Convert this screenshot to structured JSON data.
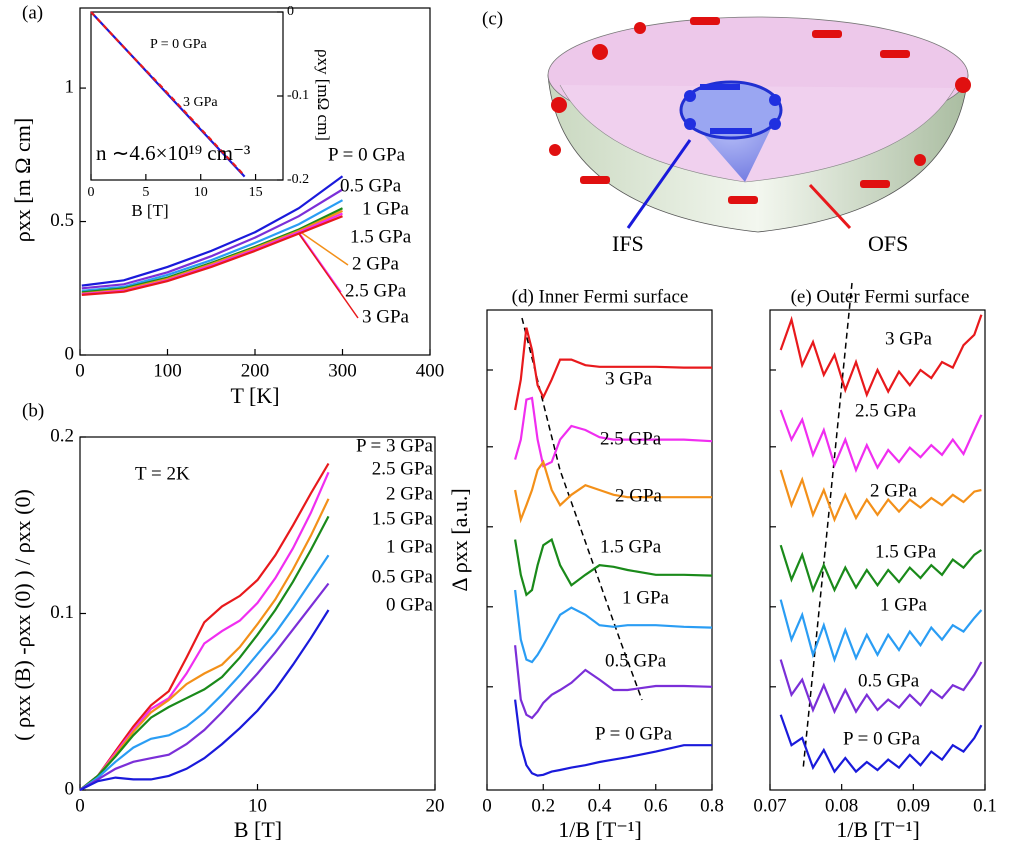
{
  "chart_data": [
    {
      "type": "line",
      "title": "(a)",
      "xlabel": "T [K]",
      "ylabel": "ρxx [m Ω cm]",
      "xlim": [
        0,
        400
      ],
      "ylim": [
        0,
        1.3
      ],
      "xticks": [
        0,
        100,
        200,
        300,
        400
      ],
      "yticks": [
        0,
        0.5,
        1
      ],
      "x": [
        2,
        50,
        100,
        150,
        200,
        250,
        300
      ],
      "series": [
        {
          "name": "P = 0 GPa",
          "color": "#1a1adb",
          "values": [
            0.26,
            0.28,
            0.33,
            0.39,
            0.46,
            0.55,
            0.67
          ]
        },
        {
          "name": "0.5 GPa",
          "color": "#7b2fd8",
          "values": [
            0.25,
            0.265,
            0.31,
            0.37,
            0.44,
            0.52,
            0.62
          ]
        },
        {
          "name": "1 GPa",
          "color": "#2a9df4",
          "values": [
            0.24,
            0.255,
            0.3,
            0.355,
            0.42,
            0.49,
            0.58
          ]
        },
        {
          "name": "1.5 GPa",
          "color": "#1a8a1a",
          "values": [
            0.235,
            0.25,
            0.29,
            0.345,
            0.405,
            0.47,
            0.55
          ]
        },
        {
          "name": "2 GPa",
          "color": "#f39019",
          "values": [
            0.23,
            0.245,
            0.285,
            0.34,
            0.4,
            0.465,
            0.54
          ]
        },
        {
          "name": "2.5 GPa",
          "color": "#f02ef0",
          "values": [
            0.228,
            0.24,
            0.28,
            0.335,
            0.395,
            0.46,
            0.53
          ]
        },
        {
          "name": "3 GPa",
          "color": "#e8191c",
          "values": [
            0.225,
            0.237,
            0.277,
            0.33,
            0.39,
            0.455,
            0.52
          ]
        }
      ]
    },
    {
      "type": "line",
      "xlabel": "B [T]",
      "ylabel": "ρxy [mΩ cm]",
      "yaxis": "right",
      "annotation": "n ∼4.6×10¹⁹ cm⁻³",
      "xlim": [
        0,
        17.5
      ],
      "ylim": [
        -0.2,
        0
      ],
      "xticks": [
        0,
        5,
        10,
        15
      ],
      "yticks": [
        0,
        -0.1,
        -0.2
      ],
      "x": [
        0,
        2,
        4,
        6,
        8,
        10,
        12,
        14
      ],
      "series": [
        {
          "name": "P = 0 GPa",
          "color": "#1a1adb",
          "values": [
            0,
            -0.028,
            -0.056,
            -0.084,
            -0.112,
            -0.14,
            -0.168,
            -0.196
          ]
        },
        {
          "name": "3 GPa",
          "color": "#e8191c",
          "values": [
            0,
            -0.028,
            -0.056,
            -0.083,
            -0.111,
            -0.139,
            -0.167,
            -0.195
          ]
        }
      ]
    },
    {
      "type": "line",
      "title": "(b)",
      "xlabel": "B [T]",
      "ylabel": "( ρxx (B) -ρxx (0) ) / ρxx (0)",
      "annotation": "T = 2K",
      "xlim": [
        0,
        20
      ],
      "ylim": [
        0,
        0.2
      ],
      "xticks": [
        0,
        10,
        20
      ],
      "yticks": [
        0,
        0.1,
        0.2
      ],
      "x": [
        0,
        1,
        2,
        3,
        4,
        5,
        6,
        7,
        8,
        9,
        10,
        11,
        12,
        13,
        14
      ],
      "series": [
        {
          "name": "P = 3 GPa",
          "color": "#e8191c",
          "values": [
            0,
            0.008,
            0.022,
            0.036,
            0.048,
            0.056,
            0.075,
            0.095,
            0.104,
            0.11,
            0.119,
            0.133,
            0.15,
            0.168,
            0.185
          ]
        },
        {
          "name": "2.5 GPa",
          "color": "#f02ef0",
          "values": [
            0,
            0.008,
            0.021,
            0.034,
            0.046,
            0.052,
            0.066,
            0.083,
            0.09,
            0.096,
            0.106,
            0.12,
            0.137,
            0.157,
            0.18
          ]
        },
        {
          "name": "2 GPa",
          "color": "#f39019",
          "values": [
            0,
            0.008,
            0.02,
            0.033,
            0.044,
            0.051,
            0.06,
            0.066,
            0.071,
            0.081,
            0.094,
            0.108,
            0.125,
            0.144,
            0.165
          ]
        },
        {
          "name": "1.5 GPa",
          "color": "#1a8a1a",
          "values": [
            0,
            0.008,
            0.019,
            0.031,
            0.041,
            0.047,
            0.052,
            0.057,
            0.064,
            0.075,
            0.088,
            0.102,
            0.118,
            0.136,
            0.155
          ]
        },
        {
          "name": "1 GPa",
          "color": "#2a9df4",
          "values": [
            0,
            0.007,
            0.016,
            0.024,
            0.029,
            0.031,
            0.036,
            0.044,
            0.054,
            0.065,
            0.077,
            0.089,
            0.103,
            0.118,
            0.133
          ]
        },
        {
          "name": "0.5 GPa",
          "color": "#7b2fd8",
          "values": [
            0,
            0.006,
            0.012,
            0.016,
            0.018,
            0.02,
            0.026,
            0.034,
            0.044,
            0.055,
            0.066,
            0.078,
            0.091,
            0.104,
            0.117
          ]
        },
        {
          "name": "0 GPa",
          "color": "#1a1adb",
          "values": [
            0,
            0.005,
            0.007,
            0.006,
            0.006,
            0.008,
            0.012,
            0.018,
            0.026,
            0.035,
            0.045,
            0.057,
            0.071,
            0.086,
            0.102
          ]
        }
      ]
    },
    {
      "type": "line",
      "title": "(d) Inner Fermi surface",
      "xlabel": "1/B [T⁻¹]",
      "ylabel": "Δ ρxx [a.u.]",
      "yticklabels": false,
      "xlim": [
        0,
        0.8
      ],
      "ylim": [
        0,
        6
      ],
      "xticks": [
        0,
        0.2,
        0.4,
        0.6,
        0.8
      ],
      "yticks": [
        1.29,
        2.29,
        3.29,
        4.29,
        5.25
      ],
      "x": [
        0.1,
        0.12,
        0.14,
        0.16,
        0.18,
        0.2,
        0.23,
        0.26,
        0.3,
        0.35,
        0.4,
        0.45,
        0.5,
        0.6,
        0.7,
        0.8
      ],
      "series": [
        {
          "name": "3 GPa",
          "color": "#e8191c",
          "values": [
            4.75,
            5.13,
            5.78,
            5.5,
            5.06,
            4.91,
            5.13,
            5.38,
            5.38,
            5.31,
            5.29,
            5.29,
            5.29,
            5.29,
            5.28,
            5.28
          ]
        },
        {
          "name": "2.5 GPa",
          "color": "#f02ef0",
          "values": [
            4.13,
            4.38,
            4.88,
            4.9,
            4.38,
            4.05,
            4.1,
            4.38,
            4.55,
            4.5,
            4.41,
            4.38,
            4.38,
            4.38,
            4.38,
            4.36
          ]
        },
        {
          "name": "2 GPa",
          "color": "#f39019",
          "values": [
            3.75,
            3.38,
            3.56,
            3.75,
            4.0,
            4.1,
            3.75,
            3.56,
            3.69,
            3.81,
            3.75,
            3.69,
            3.66,
            3.66,
            3.66,
            3.66
          ]
        },
        {
          "name": "1.5 GPa",
          "color": "#1a8a1a",
          "values": [
            3.13,
            2.69,
            2.44,
            2.5,
            2.81,
            3.06,
            3.13,
            2.81,
            2.56,
            2.69,
            2.81,
            2.79,
            2.75,
            2.69,
            2.69,
            2.68
          ]
        },
        {
          "name": "1 GPa",
          "color": "#2a9df4",
          "values": [
            2.5,
            1.88,
            1.63,
            1.6,
            1.69,
            1.81,
            2.0,
            2.19,
            2.28,
            2.19,
            2.06,
            2.04,
            2.06,
            2.06,
            2.04,
            2.03
          ]
        },
        {
          "name": "0.5 GPa",
          "color": "#7b2fd8",
          "values": [
            1.81,
            1.13,
            0.94,
            0.9,
            0.98,
            1.09,
            1.19,
            1.25,
            1.34,
            1.5,
            1.38,
            1.25,
            1.25,
            1.3,
            1.3,
            1.29
          ]
        },
        {
          "name": "P = 0 GPa",
          "color": "#1a1adb",
          "values": [
            1.13,
            0.56,
            0.31,
            0.21,
            0.18,
            0.19,
            0.23,
            0.25,
            0.28,
            0.31,
            0.35,
            0.38,
            0.41,
            0.48,
            0.56,
            0.56
          ]
        }
      ]
    },
    {
      "type": "line",
      "title": "(e) Outer Fermi surface",
      "xlabel": "1/B [T⁻¹]",
      "yticklabels": false,
      "xlim": [
        0.07,
        0.1
      ],
      "ylim": [
        0,
        6
      ],
      "xticks": [
        0.07,
        0.08,
        0.09,
        0.1
      ],
      "yticks": [
        1.29,
        2.29,
        3.29,
        4.29,
        5.25
      ],
      "x": [
        0.0715,
        0.073,
        0.0745,
        0.076,
        0.0775,
        0.079,
        0.0805,
        0.082,
        0.0835,
        0.085,
        0.0865,
        0.088,
        0.0895,
        0.091,
        0.0925,
        0.094,
        0.0955,
        0.097,
        0.0985,
        0.0995
      ],
      "series": [
        {
          "name": "3 GPa",
          "color": "#e8191c",
          "values": [
            5.5,
            5.88,
            5.31,
            5.6,
            5.19,
            5.44,
            5.0,
            5.35,
            4.94,
            5.25,
            4.98,
            5.23,
            5.06,
            5.25,
            5.15,
            5.35,
            5.28,
            5.56,
            5.69,
            5.94
          ]
        },
        {
          "name": "2.5 GPa",
          "color": "#f02ef0",
          "values": [
            4.75,
            4.38,
            4.63,
            4.19,
            4.5,
            4.06,
            4.38,
            4.0,
            4.31,
            4.03,
            4.25,
            4.1,
            4.28,
            4.16,
            4.31,
            4.19,
            4.38,
            4.2,
            4.5,
            4.69
          ]
        },
        {
          "name": "2 GPa",
          "color": "#f39019",
          "values": [
            4.0,
            3.56,
            3.88,
            3.44,
            3.75,
            3.38,
            3.69,
            3.4,
            3.63,
            3.44,
            3.63,
            3.48,
            3.63,
            3.53,
            3.65,
            3.56,
            3.69,
            3.6,
            3.73,
            3.75
          ]
        },
        {
          "name": "1.5 GPa",
          "color": "#1a8a1a",
          "values": [
            3.06,
            2.63,
            2.94,
            2.5,
            2.81,
            2.5,
            2.78,
            2.53,
            2.75,
            2.56,
            2.75,
            2.6,
            2.78,
            2.65,
            2.81,
            2.69,
            2.88,
            2.78,
            2.94,
            3.0
          ]
        },
        {
          "name": "1 GPa",
          "color": "#2a9df4",
          "values": [
            2.38,
            1.88,
            2.19,
            1.69,
            2.06,
            1.63,
            2.0,
            1.65,
            1.94,
            1.69,
            1.94,
            1.75,
            1.98,
            1.81,
            2.03,
            1.88,
            2.06,
            1.98,
            2.15,
            2.25
          ]
        },
        {
          "name": "0.5 GPa",
          "color": "#7b2fd8",
          "values": [
            1.63,
            1.19,
            1.38,
            1.0,
            1.31,
            0.98,
            1.25,
            0.98,
            1.19,
            1.0,
            1.13,
            1.03,
            1.19,
            1.06,
            1.25,
            1.15,
            1.31,
            1.25,
            1.44,
            1.6
          ]
        },
        {
          "name": "P = 0 GPa",
          "color": "#1a1adb",
          "values": [
            0.94,
            0.56,
            0.65,
            0.28,
            0.5,
            0.23,
            0.4,
            0.23,
            0.35,
            0.25,
            0.38,
            0.28,
            0.44,
            0.31,
            0.48,
            0.38,
            0.56,
            0.48,
            0.65,
            0.81
          ]
        }
      ]
    }
  ],
  "diagram": {
    "label": "(c)",
    "inner": "IFS",
    "outer": "OFS"
  }
}
